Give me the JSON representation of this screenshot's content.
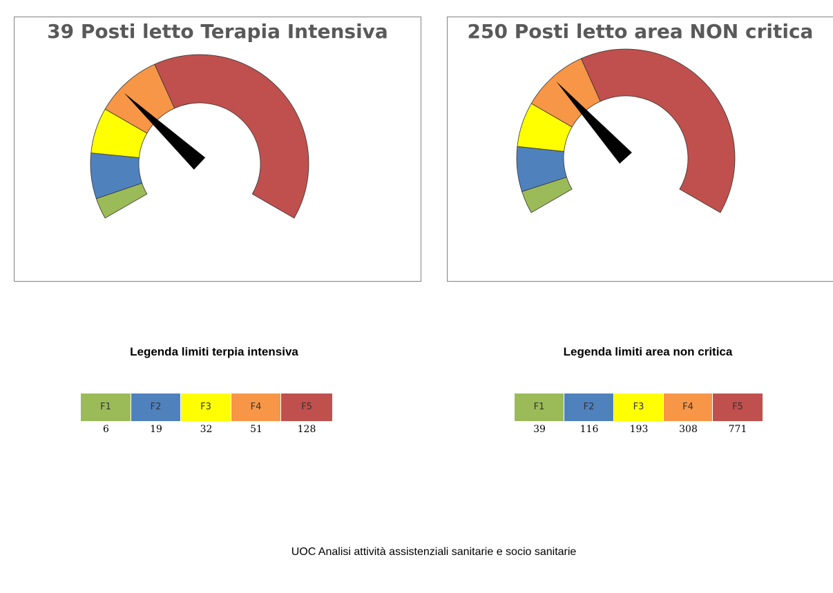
{
  "chart_data": [
    {
      "type": "gauge",
      "title": "39 Posti letto Terapia Intensiva",
      "value": 39,
      "bands": [
        {
          "name": "F1",
          "limit": 6,
          "color": "#9BBB59"
        },
        {
          "name": "F2",
          "limit": 19,
          "color": "#4F81BD"
        },
        {
          "name": "F3",
          "limit": 32,
          "color": "#FFFF00"
        },
        {
          "name": "F4",
          "limit": 51,
          "color": "#F79646"
        },
        {
          "name": "F5",
          "limit": 128,
          "color": "#C0504D"
        }
      ]
    },
    {
      "type": "gauge",
      "title": "250 Posti letto area NON critica",
      "value": 250,
      "bands": [
        {
          "name": "F1",
          "limit": 39,
          "color": "#9BBB59"
        },
        {
          "name": "F2",
          "limit": 116,
          "color": "#4F81BD"
        },
        {
          "name": "F3",
          "limit": 193,
          "color": "#FFFF00"
        },
        {
          "name": "F4",
          "limit": 308,
          "color": "#F79646"
        },
        {
          "name": "F5",
          "limit": 771,
          "color": "#C0504D"
        }
      ]
    }
  ],
  "legends": [
    {
      "title": "Legenda limiti terpia intensiva",
      "cells": [
        {
          "label": "F1",
          "value": "6",
          "color": "#9BBB59"
        },
        {
          "label": "F2",
          "value": "19",
          "color": "#4F81BD"
        },
        {
          "label": "F3",
          "value": "32",
          "color": "#FFFF00"
        },
        {
          "label": "F4",
          "value": "51",
          "color": "#F79646"
        },
        {
          "label": "F5",
          "value": "128",
          "color": "#C0504D"
        }
      ]
    },
    {
      "title": "Legenda limiti area non critica",
      "cells": [
        {
          "label": "F1",
          "value": "39",
          "color": "#9BBB59"
        },
        {
          "label": "F2",
          "value": "116",
          "color": "#4F81BD"
        },
        {
          "label": "F3",
          "value": "193",
          "color": "#FFFF00"
        },
        {
          "label": "F4",
          "value": "308",
          "color": "#F79646"
        },
        {
          "label": "F5",
          "value": "771",
          "color": "#C0504D"
        }
      ]
    }
  ],
  "footer": "UOC Analisi attività assistenziali sanitarie e socio sanitarie"
}
